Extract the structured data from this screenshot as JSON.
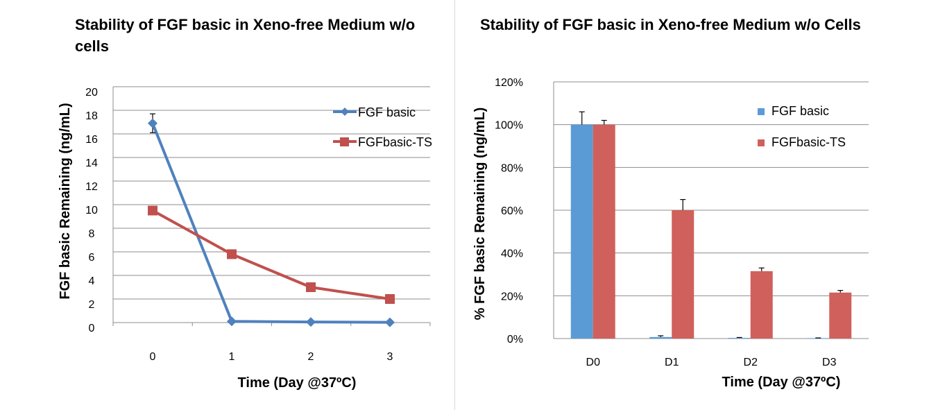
{
  "chart_data": [
    {
      "type": "line",
      "title": "Stability of FGF basic in Xeno-free Medium w/o cells",
      "xlabel": "Time (Day @37ºC)",
      "ylabel": "FGF basic Remaining (ng/mL)",
      "x": [
        0,
        1,
        2,
        3
      ],
      "xticks": [
        "0",
        "1",
        "2",
        "3"
      ],
      "ylim": [
        0,
        20
      ],
      "yticks": [
        "0",
        "2",
        "4",
        "6",
        "8",
        "10",
        "12",
        "14",
        "16",
        "18",
        "20"
      ],
      "grid": true,
      "legend_position": "top-right",
      "series": [
        {
          "name": "FGF basic",
          "values": [
            16.9,
            0.1,
            0.05,
            0.02
          ],
          "error": [
            0.8,
            0,
            0,
            0
          ],
          "color": "#4f81bd",
          "marker": "diamond"
        },
        {
          "name": "FGFbasic-TS",
          "values": [
            9.5,
            5.8,
            3.0,
            2.0
          ],
          "error": [
            0,
            0,
            0,
            0
          ],
          "color": "#c0504d",
          "marker": "square"
        }
      ]
    },
    {
      "type": "bar",
      "title": "Stability of FGF basic in Xeno-free Medium w/o Cells",
      "xlabel": "Time (Day @37ºC)",
      "ylabel": "% FGF basic Remaining (ng/mL)",
      "categories": [
        "D0",
        "D1",
        "D2",
        "D3"
      ],
      "ylim": [
        0,
        120
      ],
      "yticks": [
        "0%",
        "20%",
        "40%",
        "60%",
        "80%",
        "100%",
        "120%"
      ],
      "grid": true,
      "legend_position": "top-right",
      "series": [
        {
          "name": "FGF basic",
          "values": [
            100,
            0.7,
            0.3,
            0.2
          ],
          "error": [
            6,
            0.6,
            0.2,
            0.1
          ],
          "color": "#5b9bd5"
        },
        {
          "name": "FGFbasic-TS",
          "values": [
            100,
            60,
            31.5,
            21.5
          ],
          "error": [
            2,
            5,
            1.5,
            1
          ],
          "color": "#d0605b"
        }
      ]
    }
  ]
}
